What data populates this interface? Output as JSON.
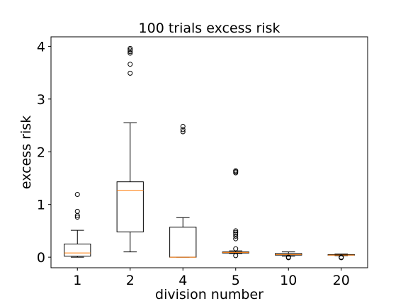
{
  "chart_data": {
    "type": "boxplot",
    "title": "100 trials excess risk",
    "xlabel": "division number",
    "ylabel": "excess risk",
    "categories": [
      "1",
      "2",
      "4",
      "5",
      "10",
      "20"
    ],
    "ylim": [
      -0.2,
      4.18
    ],
    "yticks": [
      0,
      1,
      2,
      3,
      4
    ],
    "grid": false,
    "boxes": [
      {
        "category": "1",
        "whisker_low": 0.0,
        "q1": 0.02,
        "median": 0.08,
        "q3": 0.25,
        "whisker_high": 0.51,
        "fliers": [
          0.76,
          0.79,
          0.87,
          1.19
        ]
      },
      {
        "category": "2",
        "whisker_low": 0.1,
        "q1": 0.48,
        "median": 1.27,
        "q3": 1.43,
        "whisker_high": 2.55,
        "fliers": [
          3.49,
          3.66,
          3.87,
          3.9,
          3.93,
          3.96
        ]
      },
      {
        "category": "4",
        "whisker_low": 0.0,
        "q1": 0.0,
        "median": 0.0,
        "q3": 0.57,
        "whisker_high": 0.75,
        "fliers": [
          2.38,
          2.42,
          2.48
        ]
      },
      {
        "category": "5",
        "whisker_low": 0.07,
        "q1": 0.08,
        "median": 0.09,
        "q3": 0.1,
        "whisker_high": 0.12,
        "fliers": [
          0.03,
          0.16,
          0.35,
          0.4,
          0.44,
          0.47,
          0.5,
          1.6,
          1.62,
          1.64
        ]
      },
      {
        "category": "10",
        "whisker_low": 0.02,
        "q1": 0.04,
        "median": 0.05,
        "q3": 0.07,
        "whisker_high": 0.1,
        "fliers": [
          -0.01,
          0.0
        ]
      },
      {
        "category": "20",
        "whisker_low": 0.03,
        "q1": 0.04,
        "median": 0.04,
        "q3": 0.05,
        "whisker_high": 0.06,
        "fliers": [
          -0.01,
          0.0
        ]
      }
    ],
    "colors": {
      "box": "#000000",
      "median": "#ff7f0e",
      "flier": "#000000"
    }
  }
}
